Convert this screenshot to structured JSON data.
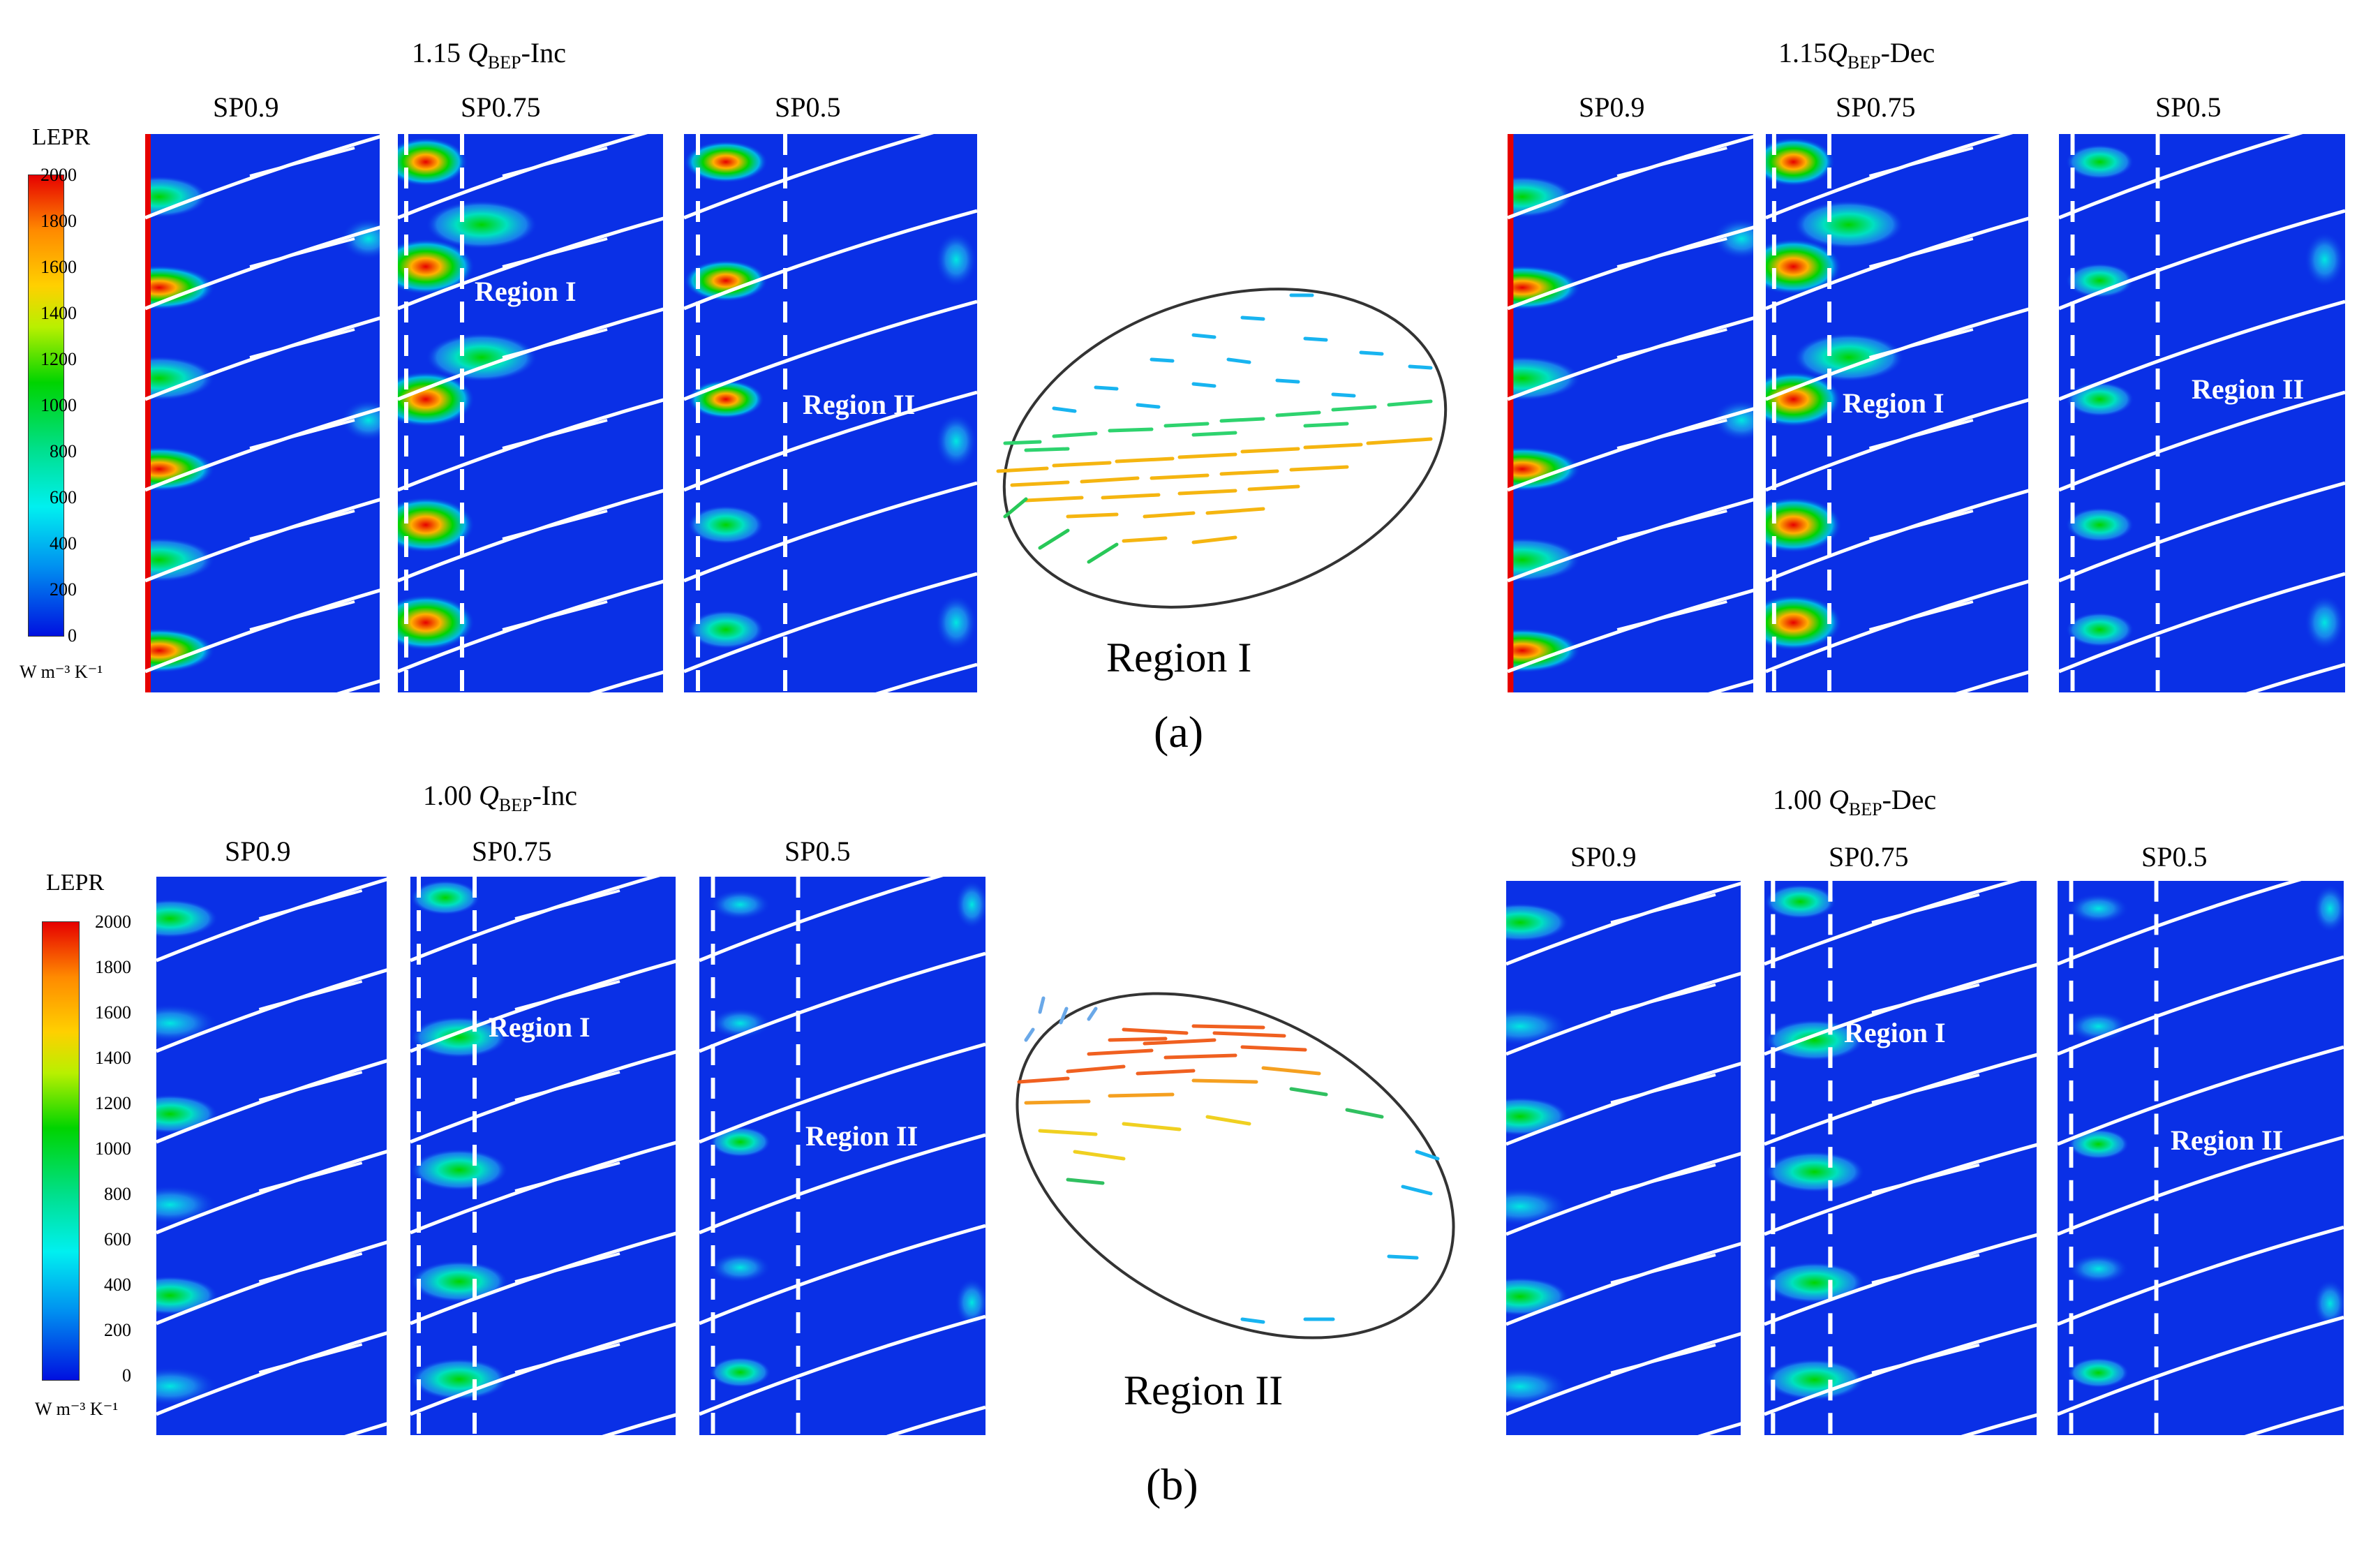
{
  "row_a": {
    "left_title_prefix": "1.15 ",
    "left_title_q": "Q",
    "left_title_sub": "BEP",
    "left_title_suffix": "-Inc",
    "right_title_prefix": "1.15",
    "right_title_q": "Q",
    "right_title_sub": "BEP",
    "right_title_suffix": "-Dec",
    "region_callout": "Region I",
    "sublabel": "(a)"
  },
  "row_b": {
    "left_title_prefix": "1.00 ",
    "left_title_q": "Q",
    "left_title_sub": "BEP",
    "left_title_suffix": "-Inc",
    "right_title_prefix": "1.00 ",
    "right_title_q": "Q",
    "right_title_sub": "BEP",
    "right_title_suffix": "-Dec",
    "region_callout": "Region II",
    "sublabel": "(b)"
  },
  "span_labels": [
    "SP0.9",
    "SP0.75",
    "SP0.5"
  ],
  "region_labels": {
    "region1": "Region I",
    "region2": "Region II"
  },
  "colorbar": {
    "title": "LEPR",
    "unit": "W m⁻³ K⁻¹",
    "ticks": [
      "2000",
      "1800",
      "1600",
      "1400",
      "1200",
      "1000",
      "800",
      "600",
      "400",
      "200",
      "0"
    ],
    "colors": {
      "max": "#e60000",
      "mid": "#00d400",
      "min": "#0010e0"
    }
  },
  "colors": {
    "field_background": "#0a30e6",
    "blade": "#ffffff",
    "dashed_line": "#ffffff"
  }
}
